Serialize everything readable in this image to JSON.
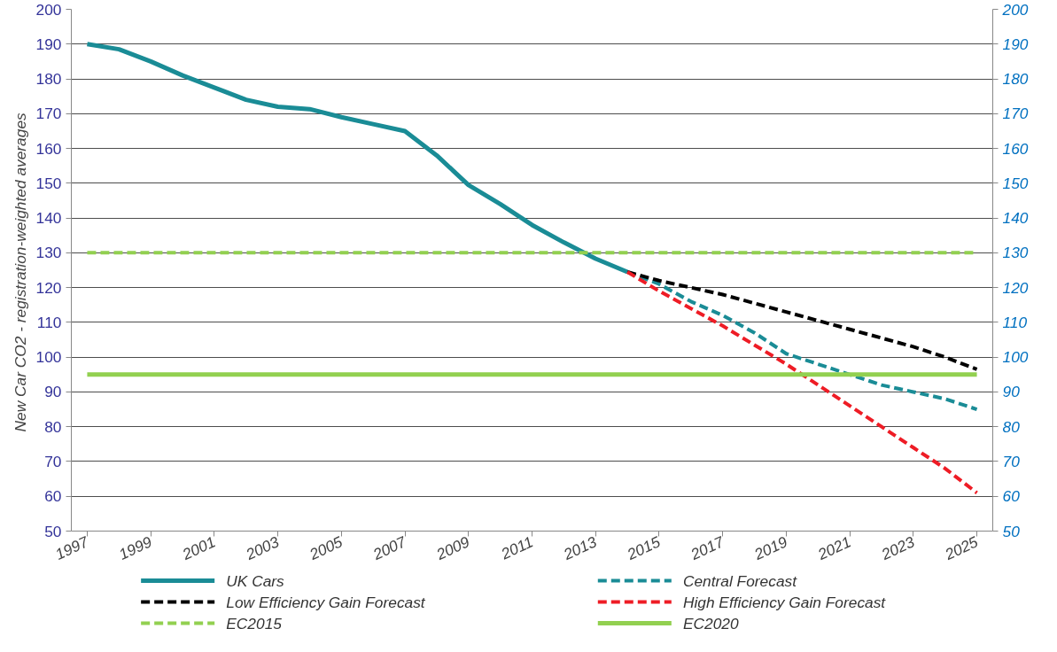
{
  "chart_data": {
    "type": "line",
    "ylabel": "New Car CO2 -  registration-weighted averages",
    "x": [
      1997,
      1998,
      1999,
      2000,
      2001,
      2002,
      2003,
      2004,
      2005,
      2006,
      2007,
      2008,
      2009,
      2010,
      2011,
      2012,
      2013,
      2014,
      2015,
      2016,
      2017,
      2018,
      2019,
      2020,
      2021,
      2022,
      2023,
      2024,
      2025
    ],
    "xlim": [
      1996.5,
      2025.5
    ],
    "xticks": [
      1997,
      1999,
      2001,
      2003,
      2005,
      2007,
      2009,
      2011,
      2013,
      2015,
      2017,
      2019,
      2021,
      2023,
      2025
    ],
    "ylim": [
      50,
      200
    ],
    "yticks": [
      50,
      60,
      70,
      80,
      90,
      100,
      110,
      120,
      130,
      140,
      150,
      160,
      170,
      180,
      190,
      200
    ],
    "y2lim": [
      50,
      200
    ],
    "y2ticks": [
      50,
      60,
      70,
      80,
      90,
      100,
      110,
      120,
      130,
      140,
      150,
      160,
      170,
      180,
      190,
      200
    ],
    "grid": "y",
    "legend": "bottom",
    "series": [
      {
        "name": "UK Cars",
        "color": "#1a8c96",
        "line_style": "solid",
        "values": [
          190,
          188.5,
          185,
          181,
          177.5,
          174,
          172,
          171.3,
          169,
          167,
          165,
          158,
          149.5,
          144,
          138,
          133,
          128.3,
          124.5,
          null,
          null,
          null,
          null,
          null,
          null,
          null,
          null,
          null,
          null,
          null
        ]
      },
      {
        "name": "Central Forecast",
        "color": "#1a8c96",
        "line_style": "dashed",
        "values": [
          null,
          null,
          null,
          null,
          null,
          null,
          null,
          null,
          null,
          null,
          null,
          null,
          null,
          null,
          null,
          null,
          null,
          124.5,
          121,
          116,
          112,
          107,
          101,
          98,
          95,
          92,
          90,
          88,
          85
        ]
      },
      {
        "name": "Low Efficiency Gain Forecast",
        "color": "#000000",
        "line_style": "dashed",
        "values": [
          null,
          null,
          null,
          null,
          null,
          null,
          null,
          null,
          null,
          null,
          null,
          null,
          null,
          null,
          null,
          null,
          null,
          124.5,
          122,
          120,
          118,
          115.5,
          113,
          110.5,
          108,
          105.5,
          103,
          100,
          96.5
        ]
      },
      {
        "name": "High Efficiency Gain Forecast",
        "color": "#ee1c25",
        "line_style": "dashed",
        "values": [
          null,
          null,
          null,
          null,
          null,
          null,
          null,
          null,
          null,
          null,
          null,
          null,
          null,
          null,
          null,
          null,
          null,
          124.5,
          119,
          114,
          109,
          103.5,
          98,
          92,
          86,
          80,
          74,
          68,
          61
        ]
      },
      {
        "name": "EC2015",
        "color": "#92d050",
        "line_style": "dashed",
        "values": [
          130,
          130,
          130,
          130,
          130,
          130,
          130,
          130,
          130,
          130,
          130,
          130,
          130,
          130,
          130,
          130,
          130,
          130,
          130,
          130,
          130,
          130,
          130,
          130,
          130,
          130,
          130,
          130,
          130
        ]
      },
      {
        "name": "EC2020",
        "color": "#92d050",
        "line_style": "solid",
        "values": [
          95,
          95,
          95,
          95,
          95,
          95,
          95,
          95,
          95,
          95,
          95,
          95,
          95,
          95,
          95,
          95,
          95,
          95,
          95,
          95,
          95,
          95,
          95,
          95,
          95,
          95,
          95,
          95,
          95
        ]
      }
    ]
  }
}
